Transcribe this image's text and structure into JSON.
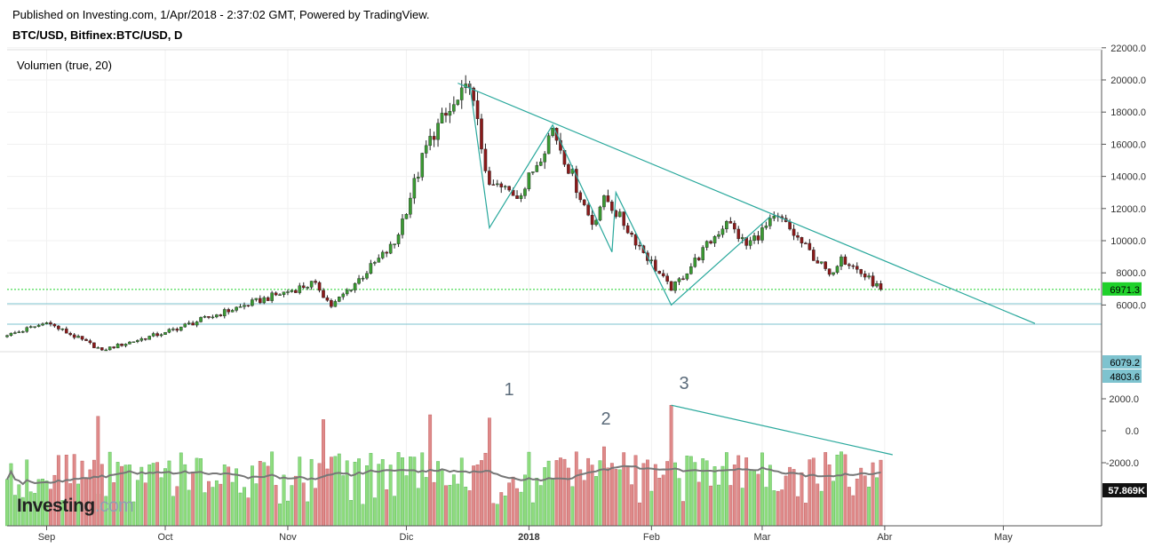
{
  "header": {
    "published": "Published on Investing.com, 1/Apr/2018 - 2:37:02 GMT, Powered by TradingView.",
    "symbol": "BTC/USD, Bitfinex:BTC/USD, D"
  },
  "volume_indicator": {
    "label": "Volumen (true, 20)",
    "last_ma_label": "57.869K"
  },
  "watermark": "Investing.com",
  "colors": {
    "up": "#3a9a32",
    "down": "#8b1a1a",
    "vol_up": "#8fdc7e",
    "vol_down": "#df8a8a",
    "trendline": "#29a89c",
    "last_price": "#1fd12a",
    "hline": "#7ec3cf",
    "ma": "#777777"
  },
  "price_axis": {
    "ticks": [
      "22000.0",
      "20000.0",
      "18000.0",
      "16000.0",
      "14000.0",
      "12000.0",
      "10000.0",
      "8000.0",
      "6000.0"
    ],
    "last_price_label": "6971.3",
    "hline_labels": [
      "6079.2",
      "4803.6"
    ]
  },
  "volume_axis": {
    "ticks": [
      "2000.0",
      "0.0",
      "-2000.0"
    ]
  },
  "time_axis": {
    "labels": [
      "Sep",
      "Oct",
      "Nov",
      "Dic",
      "2018",
      "Feb",
      "Mar",
      "Abr",
      "May"
    ],
    "bold_label": "2018"
  },
  "annotations": [
    "1",
    "2",
    "3"
  ],
  "chart_data": {
    "type": "candlestick",
    "title": "BTC/USD, Bitfinex:BTC/USD, D",
    "ylim": [
      4000,
      23000
    ],
    "x_range": [
      "2017-08-22",
      "2018-05-20"
    ],
    "key_points": [
      {
        "date": "2017-08-22",
        "close": 4100
      },
      {
        "date": "2017-09-01",
        "close": 4900
      },
      {
        "date": "2017-09-15",
        "close": 3200
      },
      {
        "date": "2017-10-01",
        "close": 4300
      },
      {
        "date": "2017-10-20",
        "close": 5900
      },
      {
        "date": "2017-11-08",
        "close": 7400
      },
      {
        "date": "2017-11-12",
        "close": 5900
      },
      {
        "date": "2017-11-28",
        "close": 9800
      },
      {
        "date": "2017-12-07",
        "close": 16500
      },
      {
        "date": "2017-12-17",
        "close": 19500
      },
      {
        "date": "2017-12-22",
        "close": 13500
      },
      {
        "date": "2017-12-30",
        "close": 12800
      },
      {
        "date": "2018-01-07",
        "close": 17000
      },
      {
        "date": "2018-01-17",
        "close": 11000
      },
      {
        "date": "2018-01-20",
        "close": 12800
      },
      {
        "date": "2018-02-06",
        "close": 6900
      },
      {
        "date": "2018-02-20",
        "close": 11200
      },
      {
        "date": "2018-02-25",
        "close": 9700
      },
      {
        "date": "2018-03-05",
        "close": 11500
      },
      {
        "date": "2018-03-18",
        "close": 7900
      },
      {
        "date": "2018-03-21",
        "close": 9000
      },
      {
        "date": "2018-03-31",
        "close": 6971.3
      }
    ],
    "last_close": 6971.3,
    "horizontal_levels": [
      6079.2,
      4803.6
    ],
    "trendlines": [
      {
        "from": {
          "date": "2017-12-14",
          "value": 19800
        },
        "to": {
          "date": "2018-05-09",
          "value": 4850
        }
      }
    ],
    "zigzag": [
      {
        "date": "2017-12-17",
        "value": 19800
      },
      {
        "date": "2017-12-22",
        "value": 10800
      },
      {
        "date": "2018-01-07",
        "value": 17200
      },
      {
        "date": "2018-01-22",
        "value": 9300
      },
      {
        "date": "2018-01-23",
        "value": 13000
      },
      {
        "date": "2018-02-06",
        "value": 6000
      },
      {
        "date": "2018-03-03",
        "value": 11500
      }
    ],
    "volume": {
      "label": "Volumen (true, 20)",
      "ylim": [
        -6000,
        3000
      ],
      "ma_last": "57.869K",
      "trendline": {
        "from": {
          "date": "2018-02-06",
          "value": 1600
        },
        "to": {
          "date": "2018-04-03",
          "value": -1500
        }
      },
      "spikes": [
        {
          "date": "2017-09-14",
          "value": 900
        },
        {
          "date": "2017-11-10",
          "value": 700
        },
        {
          "date": "2017-12-07",
          "value": 1000
        },
        {
          "date": "2017-12-22",
          "value": 800
        },
        {
          "date": "2018-01-20",
          "value": -1000
        },
        {
          "date": "2018-02-06",
          "value": 1600
        }
      ]
    }
  }
}
